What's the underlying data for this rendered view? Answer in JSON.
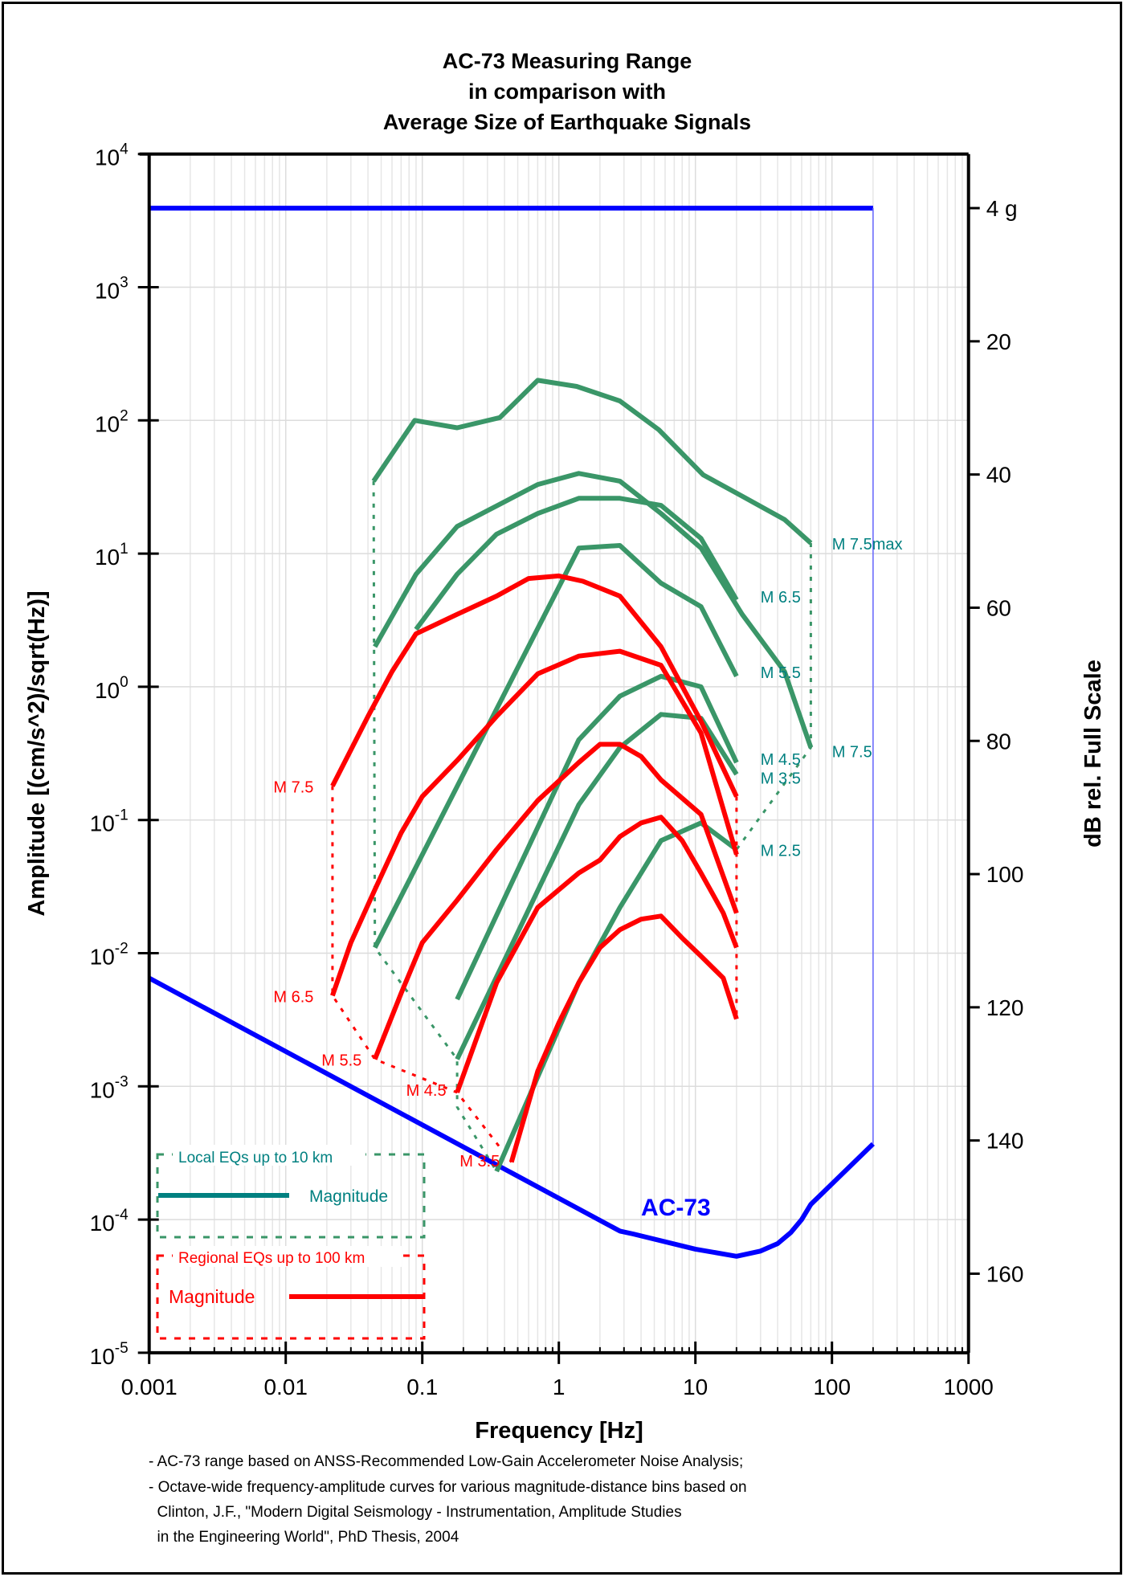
{
  "chart_data": {
    "type": "line",
    "title": [
      "AC-73 Measuring Range",
      "in comparison with",
      "Average Size of Earthquake Signals"
    ],
    "xlabel": "Frequency [Hz]",
    "ylabel": "Amplitude [(cm/s^2)/sqrt(Hz)]",
    "ylabel_right": "dB rel. Full Scale",
    "xscale": "log",
    "yscale": "log",
    "xlim": [
      0.001,
      1000
    ],
    "ylim": [
      1e-05,
      10000
    ],
    "x_ticks": [
      "0.001",
      "0.01",
      "0.1",
      "1",
      "10",
      "100",
      "1000"
    ],
    "y_ticks": [
      {
        "base": "10",
        "exp": "4"
      },
      {
        "base": "10",
        "exp": "3"
      },
      {
        "base": "10",
        "exp": "2"
      },
      {
        "base": "10",
        "exp": "1"
      },
      {
        "base": "10",
        "exp": "0"
      },
      {
        "base": "10",
        "exp": "-1"
      },
      {
        "base": "10",
        "exp": "-2"
      },
      {
        "base": "10",
        "exp": "-3"
      },
      {
        "base": "10",
        "exp": "-4"
      },
      {
        "base": "10",
        "exp": "-5"
      }
    ],
    "right_axis": {
      "full_scale_amplitude": 3924,
      "ticks_db": [
        0,
        20,
        40,
        60,
        80,
        100,
        120,
        140,
        160
      ],
      "tick_labels": [
        "4 g",
        "20",
        "40",
        "60",
        "80",
        "100",
        "120",
        "140",
        "160"
      ]
    },
    "grid": true,
    "colors": {
      "local": "#3a9668",
      "local_text": "#008080",
      "regional": "#ff0000",
      "ac73": "#0000ff"
    },
    "series": [
      {
        "name": "AC-73 full scale (4 g)",
        "group": "ac73",
        "points": [
          [
            0.001,
            3924
          ],
          [
            200,
            3924
          ]
        ]
      },
      {
        "name": "AC-73 noise",
        "group": "ac73",
        "points": [
          [
            0.001,
            0.0065
          ],
          [
            2.8,
            8.2e-05
          ],
          [
            3.5,
            7.8e-05
          ],
          [
            10,
            6e-05
          ],
          [
            20,
            5.3e-05
          ],
          [
            30,
            5.8e-05
          ],
          [
            40,
            6.6e-05
          ],
          [
            50,
            8e-05
          ],
          [
            60,
            0.0001
          ],
          [
            70,
            0.00013
          ],
          [
            200,
            0.00037
          ]
        ]
      },
      {
        "name": "Local M7.5max",
        "group": "local",
        "points": [
          [
            0.044,
            35
          ],
          [
            0.088,
            100
          ],
          [
            0.18,
            88
          ],
          [
            0.37,
            105
          ],
          [
            0.7,
            200
          ],
          [
            1.35,
            180
          ],
          [
            2.8,
            140
          ],
          [
            5.4,
            85
          ],
          [
            11.4,
            39
          ],
          [
            22,
            27
          ],
          [
            45,
            18
          ],
          [
            70,
            12
          ]
        ]
      },
      {
        "name": "Local M7.5",
        "group": "local",
        "points": [
          [
            0.045,
            2.0
          ],
          [
            0.09,
            7
          ],
          [
            0.18,
            16
          ],
          [
            0.7,
            33
          ],
          [
            1.4,
            40
          ],
          [
            2.8,
            35
          ],
          [
            5.6,
            20
          ],
          [
            11,
            11
          ],
          [
            22,
            3.5
          ],
          [
            45,
            1.3
          ],
          [
            70,
            0.35
          ]
        ]
      },
      {
        "name": "Local M6.5",
        "group": "local",
        "points": [
          [
            0.09,
            2.7
          ],
          [
            0.18,
            7
          ],
          [
            0.35,
            14
          ],
          [
            0.7,
            20
          ],
          [
            1.4,
            26
          ],
          [
            2.8,
            26
          ],
          [
            5.6,
            23
          ],
          [
            11,
            13
          ],
          [
            20,
            4.5
          ]
        ]
      },
      {
        "name": "Local M5.5",
        "group": "local",
        "points": [
          [
            0.045,
            0.011
          ],
          [
            1.4,
            11
          ],
          [
            2.8,
            11.5
          ],
          [
            5.6,
            6
          ],
          [
            11,
            4
          ],
          [
            20,
            1.2
          ]
        ]
      },
      {
        "name": "Local M4.5",
        "group": "local",
        "points": [
          [
            0.18,
            0.0045
          ],
          [
            1.4,
            0.4
          ],
          [
            2.8,
            0.85
          ],
          [
            5.6,
            1.2
          ],
          [
            11,
            1.0
          ],
          [
            20,
            0.27
          ]
        ]
      },
      {
        "name": "Local M3.5",
        "group": "local",
        "points": [
          [
            0.18,
            0.0016
          ],
          [
            1.4,
            0.13
          ],
          [
            2.8,
            0.35
          ],
          [
            5.6,
            0.62
          ],
          [
            11,
            0.58
          ],
          [
            20,
            0.22
          ]
        ]
      },
      {
        "name": "Local M2.5",
        "group": "local",
        "points": [
          [
            0.35,
            0.00023
          ],
          [
            1.4,
            0.006
          ],
          [
            2.8,
            0.022
          ],
          [
            5.6,
            0.07
          ],
          [
            11,
            0.095
          ],
          [
            20,
            0.06
          ]
        ]
      },
      {
        "name": "Regional M7.5",
        "group": "regional",
        "points": [
          [
            0.022,
            0.18
          ],
          [
            0.04,
            0.6
          ],
          [
            0.06,
            1.3
          ],
          [
            0.09,
            2.5
          ],
          [
            0.18,
            3.5
          ],
          [
            0.35,
            4.8
          ],
          [
            0.6,
            6.5
          ],
          [
            1.0,
            6.8
          ],
          [
            1.5,
            6.2
          ],
          [
            2.8,
            4.8
          ],
          [
            5.6,
            2.0
          ],
          [
            11,
            0.55
          ],
          [
            20,
            0.15
          ]
        ]
      },
      {
        "name": "Regional M6.5",
        "group": "regional",
        "points": [
          [
            0.022,
            0.0048
          ],
          [
            0.03,
            0.012
          ],
          [
            0.045,
            0.03
          ],
          [
            0.07,
            0.08
          ],
          [
            0.1,
            0.15
          ],
          [
            0.18,
            0.28
          ],
          [
            0.35,
            0.6
          ],
          [
            0.7,
            1.25
          ],
          [
            1.4,
            1.7
          ],
          [
            2.8,
            1.85
          ],
          [
            5.6,
            1.45
          ],
          [
            11,
            0.45
          ],
          [
            20,
            0.055
          ]
        ]
      },
      {
        "name": "Regional M5.5",
        "group": "regional",
        "points": [
          [
            0.045,
            0.0016
          ],
          [
            0.07,
            0.005
          ],
          [
            0.1,
            0.012
          ],
          [
            0.18,
            0.025
          ],
          [
            0.35,
            0.06
          ],
          [
            0.7,
            0.14
          ],
          [
            1.4,
            0.27
          ],
          [
            2,
            0.37
          ],
          [
            2.8,
            0.37
          ],
          [
            4,
            0.3
          ],
          [
            5.6,
            0.2
          ],
          [
            11,
            0.11
          ],
          [
            20,
            0.02
          ]
        ]
      },
      {
        "name": "Regional M4.5",
        "group": "regional",
        "points": [
          [
            0.18,
            0.0009
          ],
          [
            0.35,
            0.006
          ],
          [
            0.7,
            0.022
          ],
          [
            1.4,
            0.04
          ],
          [
            2,
            0.05
          ],
          [
            2.8,
            0.075
          ],
          [
            4,
            0.095
          ],
          [
            5.6,
            0.105
          ],
          [
            8,
            0.07
          ],
          [
            11,
            0.04
          ],
          [
            16,
            0.02
          ],
          [
            20,
            0.011
          ]
        ]
      },
      {
        "name": "Regional M3.5",
        "group": "regional",
        "points": [
          [
            0.45,
            0.00027
          ],
          [
            0.7,
            0.0013
          ],
          [
            1.0,
            0.003
          ],
          [
            1.4,
            0.006
          ],
          [
            2,
            0.011
          ],
          [
            2.8,
            0.015
          ],
          [
            4,
            0.018
          ],
          [
            5.6,
            0.019
          ],
          [
            8,
            0.013
          ],
          [
            11,
            0.0095
          ],
          [
            16,
            0.0065
          ],
          [
            20,
            0.0032
          ]
        ]
      }
    ],
    "connectors": [
      {
        "group": "local",
        "points": [
          [
            0.044,
            35
          ],
          [
            0.045,
            0.011
          ],
          [
            0.18,
            0.0016
          ],
          [
            0.18,
            0.0007
          ],
          [
            0.35,
            0.00023
          ]
        ]
      },
      {
        "group": "local",
        "points": [
          [
            70,
            12
          ],
          [
            70,
            0.35
          ],
          [
            20,
            0.06
          ]
        ]
      },
      {
        "group": "regional",
        "points": [
          [
            0.022,
            0.18
          ],
          [
            0.022,
            0.0048
          ],
          [
            0.045,
            0.0016
          ],
          [
            0.18,
            0.0009
          ],
          [
            0.45,
            0.00027
          ]
        ]
      },
      {
        "group": "regional",
        "points": [
          [
            20,
            0.15
          ],
          [
            20,
            0.0032
          ]
        ]
      }
    ],
    "annotations": [
      {
        "text": "M 7.5max",
        "group": "local",
        "f": 100,
        "a": 12,
        "anchor": "start"
      },
      {
        "text": "M 6.5",
        "group": "local",
        "f": 30,
        "a": 4.8,
        "anchor": "start"
      },
      {
        "text": "M 5.5",
        "group": "local",
        "f": 30,
        "a": 1.3,
        "anchor": "start"
      },
      {
        "text": "M 4.5",
        "group": "local",
        "f": 30,
        "a": 0.29,
        "anchor": "start"
      },
      {
        "text": "M 3.5",
        "group": "local",
        "f": 30,
        "a": 0.21,
        "anchor": "start"
      },
      {
        "text": "M 2.5",
        "group": "local",
        "f": 30,
        "a": 0.06,
        "anchor": "start"
      },
      {
        "text": "M 7.5",
        "group": "local",
        "f": 100,
        "a": 0.33,
        "anchor": "start"
      },
      {
        "text": "M 7.5",
        "group": "regional",
        "f": 0.016,
        "a": 0.18,
        "anchor": "end"
      },
      {
        "text": "M 6.5",
        "group": "regional",
        "f": 0.016,
        "a": 0.0048,
        "anchor": "end"
      },
      {
        "text": "M 5.5",
        "group": "regional",
        "f": 0.036,
        "a": 0.0016,
        "anchor": "end"
      },
      {
        "text": "M 4.5",
        "group": "regional",
        "f": 0.15,
        "a": 0.00095,
        "anchor": "end"
      },
      {
        "text": "M 3.5",
        "group": "regional",
        "f": 0.37,
        "a": 0.00028,
        "anchor": "end"
      },
      {
        "text": "AC-73",
        "group": "ac73",
        "f": 4,
        "a": 0.00012,
        "anchor": "start"
      }
    ],
    "legend": {
      "placement": "bottom-left",
      "local_title": "Local EQs up to 10 km",
      "local_label": "Magnitude",
      "regional_title": "Regional EQs up to 100 km",
      "regional_label": "Magnitude"
    }
  },
  "notes": [
    "- AC-73 range based on ANSS-Recommended Low-Gain Accelerometer Noise Analysis;",
    "- Octave-wide frequency-amplitude curves for various magnitude-distance bins based on",
    "  Clinton, J.F., \"Modern Digital Seismology - Instrumentation, Amplitude Studies",
    "  in the Engineering World\", PhD Thesis, 2004"
  ]
}
